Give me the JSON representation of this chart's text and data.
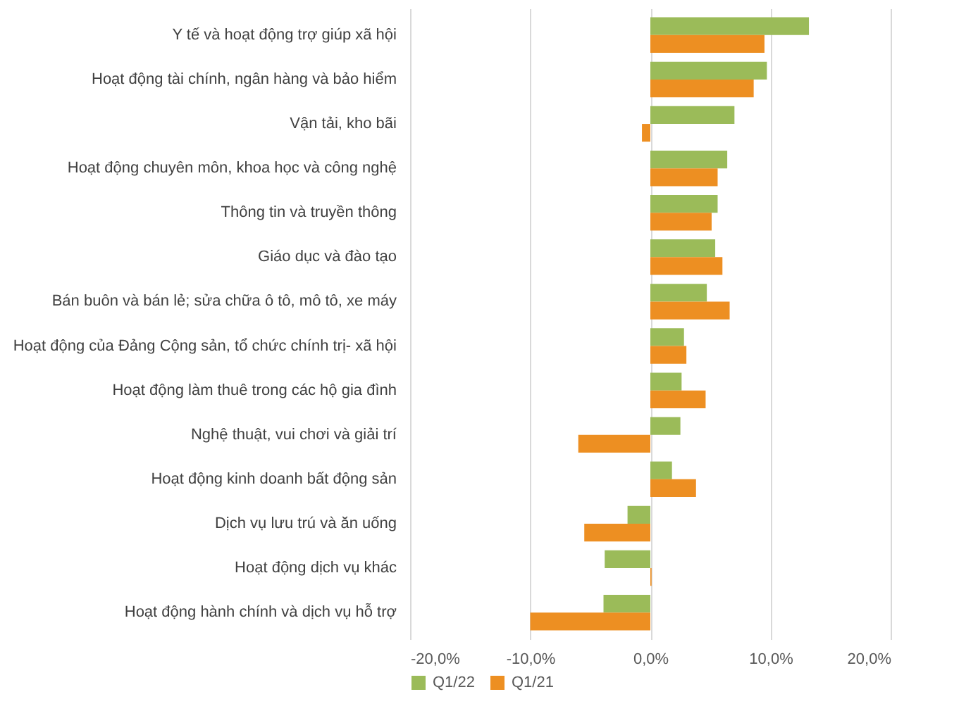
{
  "chart_data": {
    "type": "bar",
    "orientation": "horizontal",
    "categories": [
      "Y tế và hoạt động trợ giúp xã hội",
      "Hoạt động tài chính, ngân hàng và bảo hiểm",
      "Vận tải, kho bãi",
      "Hoạt động chuyên môn, khoa học và công nghệ",
      "Thông tin và truyền thông",
      "Giáo dục và đào tạo",
      "Bán buôn và bán lẻ; sửa chữa ô tô, mô tô, xe máy",
      "Hoạt động của Đảng Cộng sản, tổ chức chính trị- xã hội",
      "Hoạt động làm thuê trong các hộ gia đình",
      "Nghệ thuật, vui chơi và giải trí",
      "Hoạt động kinh doanh bất động sản",
      "Dịch vụ lưu trú và ăn uống",
      "Hoạt động dịch vụ khác",
      "Hoạt động hành chính và dịch vụ hỗ trợ"
    ],
    "series": [
      {
        "name": "Q1/22",
        "color": "#9bbb59",
        "values": [
          13.2,
          9.7,
          7.0,
          6.4,
          5.6,
          5.4,
          4.7,
          2.8,
          2.6,
          2.5,
          1.8,
          -1.9,
          -3.8,
          -3.9
        ]
      },
      {
        "name": "Q1/21",
        "color": "#ed8f22",
        "values": [
          9.5,
          8.6,
          -0.7,
          5.6,
          5.1,
          6.0,
          6.6,
          3.0,
          4.6,
          -6.0,
          3.8,
          -5.5,
          0.1,
          -10.0
        ]
      }
    ],
    "xlim": [
      -20,
      20
    ],
    "xticks": [
      {
        "value": -20,
        "label": "-20,0%"
      },
      {
        "value": -10,
        "label": "-10,0%"
      },
      {
        "value": 0,
        "label": "0,0%"
      },
      {
        "value": 10,
        "label": "10,0%"
      },
      {
        "value": 20,
        "label": "20,0%"
      }
    ],
    "grid": "x",
    "legend": "bottom"
  }
}
